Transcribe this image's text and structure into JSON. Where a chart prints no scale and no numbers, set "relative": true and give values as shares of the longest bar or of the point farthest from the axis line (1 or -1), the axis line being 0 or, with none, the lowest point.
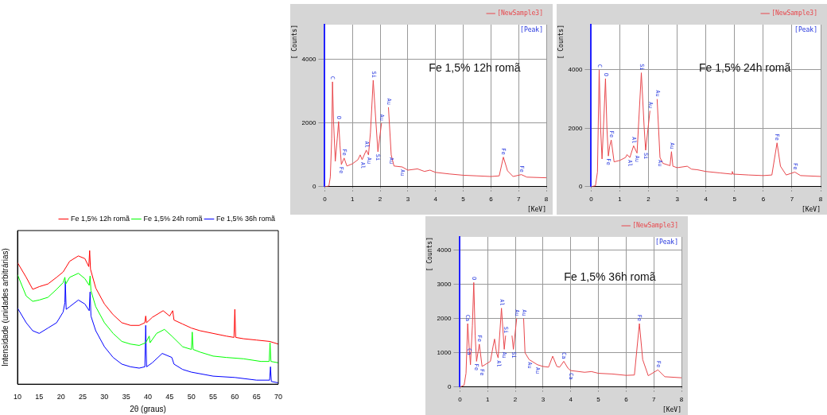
{
  "chart_data": [
    {
      "type": "line",
      "relative": true,
      "xlabel": "2θ (graus)",
      "ylabel": "Intensidade (unidades arbitrárias)",
      "xlim": [
        10,
        70
      ],
      "xticks": [
        10,
        15,
        20,
        25,
        30,
        35,
        40,
        45,
        50,
        55,
        60,
        65,
        70
      ],
      "legend": "top right",
      "series": [
        {
          "name": "Fe 1,5% 12h romã",
          "color": "#ff0000",
          "x": [
            10,
            12,
            13.5,
            15,
            17,
            19,
            20.5,
            22,
            24,
            25.5,
            26.4,
            26.6,
            26.8,
            28,
            30,
            32,
            34,
            36,
            38,
            39.3,
            39.5,
            39.7,
            41,
            43.5,
            45,
            45.7,
            46,
            48,
            50,
            52,
            55,
            58,
            59.8,
            60,
            60.2,
            62,
            65,
            68,
            70
          ],
          "values": [
            0.91,
            0.8,
            0.71,
            0.73,
            0.75,
            0.8,
            0.84,
            0.92,
            0.96,
            0.94,
            0.88,
            1,
            0.86,
            0.72,
            0.6,
            0.52,
            0.46,
            0.44,
            0.44,
            0.46,
            0.51,
            0.46,
            0.5,
            0.55,
            0.51,
            0.55,
            0.48,
            0.45,
            0.42,
            0.4,
            0.38,
            0.36,
            0.35,
            0.56,
            0.35,
            0.34,
            0.33,
            0.32,
            0.3
          ]
        },
        {
          "name": "Fe 1,5% 24h romã",
          "color": "#00ff00",
          "x": [
            10,
            12,
            13.5,
            15,
            17,
            19,
            20.5,
            20.9,
            21.1,
            22,
            24,
            25.5,
            26.5,
            26.7,
            26.9,
            28,
            30,
            32,
            34,
            36,
            38,
            39.5,
            40.3,
            40.5,
            42,
            43.8,
            45.5,
            48,
            50,
            50.2,
            50.4,
            52,
            55,
            58,
            62,
            66,
            67.9,
            68.1,
            68.3,
            70
          ],
          "values": [
            0.82,
            0.66,
            0.62,
            0.63,
            0.65,
            0.71,
            0.76,
            0.8,
            0.75,
            0.8,
            0.83,
            0.79,
            0.74,
            0.81,
            0.7,
            0.58,
            0.46,
            0.38,
            0.32,
            0.3,
            0.29,
            0.31,
            0.36,
            0.31,
            0.38,
            0.41,
            0.36,
            0.28,
            0.26,
            0.39,
            0.26,
            0.24,
            0.21,
            0.2,
            0.19,
            0.17,
            0.17,
            0.31,
            0.17,
            0.16
          ]
        },
        {
          "name": "Fe 1,5% 36h romã",
          "color": "#0000ff",
          "x": [
            10,
            12,
            13.5,
            15,
            17,
            19,
            20.5,
            20.9,
            21,
            21.2,
            22,
            24,
            25.5,
            26.5,
            26.7,
            26.9,
            28,
            30,
            32,
            34,
            36,
            38,
            39.3,
            39.5,
            39.7,
            41,
            43.3,
            45.5,
            46,
            48,
            50,
            55,
            60,
            65,
            68,
            68.2,
            68.4,
            70
          ],
          "values": [
            0.57,
            0.46,
            0.4,
            0.38,
            0.42,
            0.46,
            0.54,
            0.61,
            0.77,
            0.56,
            0.58,
            0.63,
            0.6,
            0.55,
            0.69,
            0.51,
            0.4,
            0.28,
            0.2,
            0.15,
            0.13,
            0.12,
            0.13,
            0.44,
            0.13,
            0.16,
            0.23,
            0.2,
            0.15,
            0.11,
            0.09,
            0.06,
            0.05,
            0.03,
            0.03,
            0.13,
            0.02,
            0.01
          ]
        }
      ]
    },
    {
      "type": "line",
      "title": "Fe 1,5% 12h romã",
      "xlabel": "[KeV]",
      "ylabel": "[ Counts]",
      "xlim": [
        0,
        8
      ],
      "xticks": [
        0,
        1,
        2,
        3,
        4,
        5,
        6,
        7,
        8
      ],
      "ylim": [
        0,
        5100
      ],
      "yticks": [
        0,
        2000,
        4000
      ],
      "grid": true,
      "legend": "top right",
      "x": [
        0,
        0.15,
        0.2,
        0.25,
        0.28,
        0.32,
        0.38,
        0.45,
        0.5,
        0.55,
        0.6,
        0.7,
        0.8,
        1,
        1.2,
        1.28,
        1.35,
        1.5,
        1.58,
        1.65,
        1.75,
        1.85,
        1.92,
        2.05,
        2.15,
        2.25,
        2.3,
        2.4,
        2.5,
        2.8,
        3,
        3.35,
        3.6,
        3.8,
        4,
        4.5,
        5,
        5.5,
        6,
        6.3,
        6.45,
        6.6,
        6.8,
        7.1,
        7.3,
        8
      ],
      "series": [
        {
          "name": "[NewSample3]",
          "color": "#e8474c",
          "values": [
            0,
            20,
            300,
            1500,
            3300,
            2000,
            800,
            1500,
            2050,
            1300,
            700,
            900,
            650,
            720,
            850,
            1000,
            850,
            1150,
            1000,
            1700,
            3350,
            2000,
            1100,
            2000,
            null,
            null,
            2500,
            1000,
            650,
            620,
            520,
            560,
            480,
            520,
            450,
            400,
            360,
            340,
            320,
            340,
            930,
            500,
            320,
            380,
            300,
            280
          ]
        }
      ],
      "annotations": [
        "[Peak]",
        {
          "text": "C",
          "x": 0.28,
          "y": 3300
        },
        {
          "text": "O",
          "x": 0.5,
          "y": 2050
        },
        {
          "text": "Fe",
          "x": 0.6,
          "y": 700
        },
        {
          "text": "Fe",
          "x": 0.7,
          "y": 900
        },
        {
          "text": "Al",
          "x": 1.5,
          "y": 1150
        },
        {
          "text": "Al",
          "x": 1.35,
          "y": 850
        },
        {
          "text": "Au",
          "x": 1.58,
          "y": 1000
        },
        {
          "text": "Si",
          "x": 1.75,
          "y": 3350
        },
        {
          "text": "Si",
          "x": 1.92,
          "y": 1100
        },
        {
          "text": "Au",
          "x": 2.05,
          "y": 2000
        },
        {
          "text": "Au",
          "x": 2.3,
          "y": 2500
        },
        {
          "text": "Au",
          "x": 2.4,
          "y": 1000
        },
        {
          "text": "Au",
          "x": 2.8,
          "y": 620
        },
        {
          "text": "Fe",
          "x": 6.45,
          "y": 930
        },
        {
          "text": "Fe",
          "x": 7.1,
          "y": 380
        }
      ]
    },
    {
      "type": "line",
      "title": "Fe 1,5% 24h romã",
      "xlabel": "[KeV]",
      "ylabel": "[ Counts]",
      "xlim": [
        0,
        8
      ],
      "xticks": [
        0,
        1,
        2,
        3,
        4,
        5,
        6,
        7,
        8
      ],
      "ylim": [
        0,
        5550
      ],
      "yticks": [
        0,
        2000,
        4000
      ],
      "grid": true,
      "legend": "top right",
      "x": [
        0,
        0.15,
        0.22,
        0.28,
        0.33,
        0.38,
        0.45,
        0.5,
        0.55,
        0.6,
        0.65,
        0.7,
        0.8,
        1,
        1.2,
        1.25,
        1.35,
        1.48,
        1.6,
        1.75,
        1.85,
        1.9,
        2.05,
        2.15,
        2.25,
        2.3,
        2.4,
        2.5,
        2.75,
        2.8,
        2.85,
        3,
        3.35,
        3.5,
        3.7,
        4,
        4.5,
        4.9,
        4.92,
        4.95,
        5.5,
        6,
        6.3,
        6.48,
        6.6,
        6.8,
        7.1,
        7.3,
        8
      ],
      "series": [
        {
          "name": "[NewSample3]",
          "color": "#e8474c",
          "values": [
            0,
            30,
            500,
            4000,
            2000,
            950,
            2500,
            3700,
            2000,
            1050,
            1400,
            1600,
            850,
            900,
            1000,
            1100,
            1000,
            1400,
            1150,
            3900,
            2000,
            1250,
            2600,
            null,
            null,
            3000,
            1000,
            800,
            720,
            1200,
            700,
            650,
            700,
            600,
            580,
            520,
            470,
            430,
            520,
            430,
            400,
            380,
            400,
            1500,
            700,
            400,
            500,
            380,
            350
          ]
        }
      ],
      "annotations": [
        "[Peak]",
        {
          "text": "C",
          "x": 0.28,
          "y": 4000
        },
        {
          "text": "O",
          "x": 0.5,
          "y": 3700
        },
        {
          "text": "Fe",
          "x": 0.6,
          "y": 1050
        },
        {
          "text": "Fe",
          "x": 0.7,
          "y": 1600
        },
        {
          "text": "Al",
          "x": 1.48,
          "y": 1400
        },
        {
          "text": "Al",
          "x": 1.35,
          "y": 1000
        },
        {
          "text": "Au",
          "x": 1.6,
          "y": 1150
        },
        {
          "text": "Si",
          "x": 1.75,
          "y": 3900
        },
        {
          "text": "Si",
          "x": 1.9,
          "y": 1250
        },
        {
          "text": "Au",
          "x": 2.05,
          "y": 2600
        },
        {
          "text": "Au",
          "x": 2.3,
          "y": 3000
        },
        {
          "text": "Au",
          "x": 2.4,
          "y": 1000
        },
        {
          "text": "Au",
          "x": 2.8,
          "y": 1200
        },
        {
          "text": "Fe",
          "x": 6.48,
          "y": 1500
        },
        {
          "text": "Fe",
          "x": 7.1,
          "y": 500
        }
      ]
    },
    {
      "type": "line",
      "title": "Fe 1,5% 36h romã",
      "xlabel": "[KeV]",
      "ylabel": "[ Counts]",
      "xlim": [
        0,
        8
      ],
      "xticks": [
        0,
        1,
        2,
        3,
        4,
        5,
        6,
        7,
        8
      ],
      "ylim": [
        0,
        4380
      ],
      "yticks": [
        0,
        1000,
        2000,
        3000,
        4000
      ],
      "grid": true,
      "legend": "top right",
      "x": [
        0,
        0.15,
        0.22,
        0.28,
        0.33,
        0.38,
        0.45,
        0.5,
        0.55,
        0.6,
        0.7,
        0.8,
        1,
        1.1,
        1.2,
        1.25,
        1.32,
        1.38,
        1.5,
        1.6,
        1.65,
        1.75,
        1.8,
        1.88,
        1.93,
        2.05,
        2.15,
        2.25,
        2.3,
        2.35,
        2.5,
        2.8,
        3,
        3.2,
        3.35,
        3.5,
        3.6,
        3.75,
        3.9,
        4,
        4.5,
        4.75,
        5,
        5.5,
        6,
        6.3,
        6.48,
        6.6,
        6.8,
        7.15,
        7.4,
        8
      ],
      "series": [
        {
          "name": "[NewSample3]",
          "color": "#e8474c",
          "values": [
            0,
            50,
            400,
            1850,
            1200,
            650,
            1800,
            3050,
            1500,
            750,
            1250,
            600,
            700,
            750,
            1200,
            1400,
            1000,
            850,
            2300,
            1100,
            1500,
            null,
            null,
            1500,
            1100,
            2000,
            null,
            null,
            2000,
            1000,
            800,
            650,
            600,
            580,
            900,
            600,
            580,
            750,
            550,
            480,
            430,
            450,
            400,
            380,
            340,
            350,
            1850,
            800,
            330,
            500,
            300,
            270
          ]
        }
      ],
      "annotations": [
        "[Peak]",
        {
          "text": "Ca",
          "x": 0.28,
          "y": 1850
        },
        {
          "text": "Ca",
          "x": 0.33,
          "y": 1200
        },
        {
          "text": "O",
          "x": 0.5,
          "y": 3050
        },
        {
          "text": "Fe",
          "x": 0.6,
          "y": 750
        },
        {
          "text": "Fe",
          "x": 0.8,
          "y": 600
        },
        {
          "text": "Fe",
          "x": 0.7,
          "y": 1250
        },
        {
          "text": "Al",
          "x": 1.5,
          "y": 2300
        },
        {
          "text": "Al",
          "x": 1.38,
          "y": 850
        },
        {
          "text": "Au",
          "x": 1.6,
          "y": 1100
        },
        {
          "text": "Si",
          "x": 1.65,
          "y": 1500
        },
        {
          "text": "Si",
          "x": 1.93,
          "y": 1100
        },
        {
          "text": "Au",
          "x": 2.05,
          "y": 2000
        },
        {
          "text": "Au",
          "x": 2.3,
          "y": 2000
        },
        {
          "text": "Au",
          "x": 2.5,
          "y": 800
        },
        {
          "text": "Au",
          "x": 2.8,
          "y": 650
        },
        {
          "text": "Ca",
          "x": 3.75,
          "y": 750
        },
        {
          "text": "Ca",
          "x": 4,
          "y": 480
        },
        {
          "text": "Fe",
          "x": 6.48,
          "y": 1850
        },
        {
          "text": "Fe",
          "x": 7.15,
          "y": 500
        }
      ]
    }
  ]
}
